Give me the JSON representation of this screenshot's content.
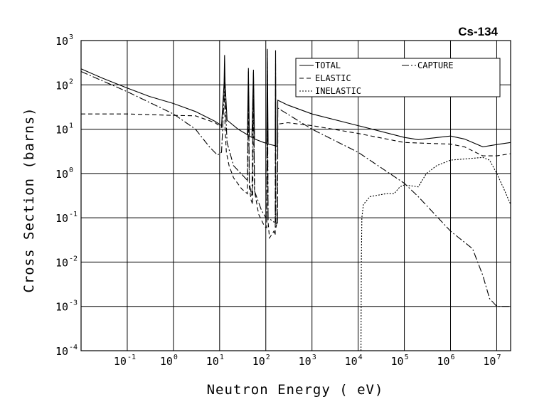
{
  "chart_data": {
    "type": "line",
    "title": "Cs-134",
    "xlabel": "Neutron Energy ( eV)",
    "ylabel": "Cross Section (barns)",
    "x_scale": "log",
    "y_scale": "log",
    "xlim": [
      0.01,
      20000000
    ],
    "ylim": [
      0.0001,
      1000
    ],
    "grid": true,
    "legend_position": "top-right",
    "x_ticks": [
      {
        "base": "10",
        "exp": "-1",
        "value": 0.1
      },
      {
        "base": "10",
        "exp": "0",
        "value": 1
      },
      {
        "base": "10",
        "exp": "1",
        "value": 10
      },
      {
        "base": "10",
        "exp": "2",
        "value": 100
      },
      {
        "base": "10",
        "exp": "3",
        "value": 1000
      },
      {
        "base": "10",
        "exp": "4",
        "value": 10000
      },
      {
        "base": "10",
        "exp": "5",
        "value": 100000
      },
      {
        "base": "10",
        "exp": "6",
        "value": 1000000
      },
      {
        "base": "10",
        "exp": "7",
        "value": 10000000
      }
    ],
    "y_ticks": [
      {
        "base": "10",
        "exp": "-4",
        "value": 0.0001
      },
      {
        "base": "10",
        "exp": "-3",
        "value": 0.001
      },
      {
        "base": "10",
        "exp": "-2",
        "value": 0.01
      },
      {
        "base": "10",
        "exp": "-1",
        "value": 0.1
      },
      {
        "base": "10",
        "exp": "0",
        "value": 1
      },
      {
        "base": "10",
        "exp": "1",
        "value": 10
      },
      {
        "base": "10",
        "exp": "2",
        "value": 100
      },
      {
        "base": "10",
        "exp": "3",
        "value": 1000
      }
    ],
    "series": [
      {
        "name": "TOTAL",
        "dash": "solid",
        "points": [
          [
            0.01,
            230
          ],
          [
            0.03,
            140
          ],
          [
            0.1,
            85
          ],
          [
            0.3,
            55
          ],
          [
            1,
            38
          ],
          [
            3,
            25
          ],
          [
            8,
            15
          ],
          [
            11,
            12
          ],
          [
            12.5,
            110
          ],
          [
            12.8,
            470
          ],
          [
            13.1,
            120
          ],
          [
            14.5,
            16
          ],
          [
            25,
            10
          ],
          [
            40,
            7.5
          ],
          [
            42,
            240
          ],
          [
            44,
            7
          ],
          [
            50,
            6.5
          ],
          [
            54,
            220
          ],
          [
            57,
            6
          ],
          [
            90,
            5
          ],
          [
            105,
            4.8
          ],
          [
            108,
            650
          ],
          [
            112,
            4.6
          ],
          [
            150,
            4.3
          ],
          [
            160,
            4.2
          ],
          [
            163,
            600
          ],
          [
            166,
            4.2
          ],
          [
            175,
            4.1
          ],
          [
            180,
            4.1
          ],
          [
            182,
            45
          ],
          [
            300,
            35
          ],
          [
            1000,
            22
          ],
          [
            10000,
            12
          ],
          [
            100000,
            6.5
          ],
          [
            200000,
            5.8
          ],
          [
            1000000,
            7
          ],
          [
            2000000,
            6
          ],
          [
            5000000,
            4
          ],
          [
            10000000,
            4.5
          ],
          [
            20000000,
            5
          ]
        ]
      },
      {
        "name": "ELASTIC",
        "dash": "dashed",
        "points": [
          [
            0.01,
            22
          ],
          [
            0.1,
            22
          ],
          [
            1,
            20.5
          ],
          [
            3,
            20
          ],
          [
            8,
            14
          ],
          [
            11,
            11
          ],
          [
            12.5,
            90
          ],
          [
            12.8,
            120
          ],
          [
            13.1,
            11
          ],
          [
            14,
            3
          ],
          [
            16,
            1.5
          ],
          [
            20,
            0.8
          ],
          [
            30,
            0.45
          ],
          [
            40,
            0.35
          ],
          [
            42,
            60
          ],
          [
            44,
            0.5
          ],
          [
            48,
            0.25
          ],
          [
            52,
            0.2
          ],
          [
            54,
            60
          ],
          [
            57,
            0.4
          ],
          [
            70,
            0.12
          ],
          [
            90,
            0.07
          ],
          [
            100,
            0.06
          ],
          [
            105,
            0.06
          ],
          [
            108,
            60
          ],
          [
            112,
            0.08
          ],
          [
            120,
            0.035
          ],
          [
            150,
            0.05
          ],
          [
            160,
            0.04
          ],
          [
            163,
            40
          ],
          [
            166,
            0.06
          ],
          [
            175,
            0.08
          ],
          [
            180,
            0.08
          ],
          [
            182,
            13
          ],
          [
            300,
            14
          ],
          [
            1000,
            12
          ],
          [
            10000,
            8
          ],
          [
            100000,
            5
          ],
          [
            1000000,
            4.6
          ],
          [
            2000000,
            4
          ],
          [
            5000000,
            2.5
          ],
          [
            10000000,
            2.5
          ],
          [
            20000000,
            2.8
          ]
        ]
      },
      {
        "name": "CAPTURE",
        "dash": "dashdot",
        "points": [
          [
            0.01,
            200
          ],
          [
            0.1,
            70
          ],
          [
            1,
            22
          ],
          [
            3,
            10
          ],
          [
            6,
            4
          ],
          [
            9,
            2.6
          ],
          [
            11,
            3
          ],
          [
            12.5,
            50
          ],
          [
            12.8,
            300
          ],
          [
            13.1,
            60
          ],
          [
            14.5,
            5
          ],
          [
            20,
            1.5
          ],
          [
            40,
            0.7
          ],
          [
            42,
            200
          ],
          [
            44,
            0.6
          ],
          [
            50,
            0.3
          ],
          [
            54,
            200
          ],
          [
            57,
            0.4
          ],
          [
            80,
            0.15
          ],
          [
            100,
            0.1
          ],
          [
            105,
            0.1
          ],
          [
            108,
            600
          ],
          [
            112,
            0.1
          ],
          [
            150,
            0.08
          ],
          [
            160,
            0.08
          ],
          [
            163,
            350
          ],
          [
            166,
            0.08
          ],
          [
            175,
            0.07
          ],
          [
            180,
            0.07
          ],
          [
            182,
            30
          ],
          [
            1000,
            10
          ],
          [
            10000,
            3
          ],
          [
            100000,
            0.6
          ],
          [
            200000,
            0.3
          ],
          [
            1000000,
            0.05
          ],
          [
            3000000,
            0.02
          ],
          [
            5000000,
            0.005
          ],
          [
            7000000,
            0.0015
          ],
          [
            10000000,
            0.001
          ],
          [
            20000000,
            0.001
          ]
        ]
      },
      {
        "name": "INELASTIC",
        "dash": "dotted",
        "points": [
          [
            11500,
            0.0001
          ],
          [
            11700,
            0.01
          ],
          [
            12000,
            0.1
          ],
          [
            13000,
            0.2
          ],
          [
            18000,
            0.3
          ],
          [
            40000,
            0.35
          ],
          [
            60000,
            0.35
          ],
          [
            80000,
            0.5
          ],
          [
            100000,
            0.55
          ],
          [
            200000,
            0.5
          ],
          [
            300000,
            1
          ],
          [
            500000,
            1.5
          ],
          [
            1000000,
            2
          ],
          [
            3000000,
            2.2
          ],
          [
            5000000,
            2.3
          ],
          [
            7000000,
            2
          ],
          [
            10000000,
            1
          ],
          [
            15000000,
            0.4
          ],
          [
            20000000,
            0.2
          ]
        ]
      }
    ]
  }
}
